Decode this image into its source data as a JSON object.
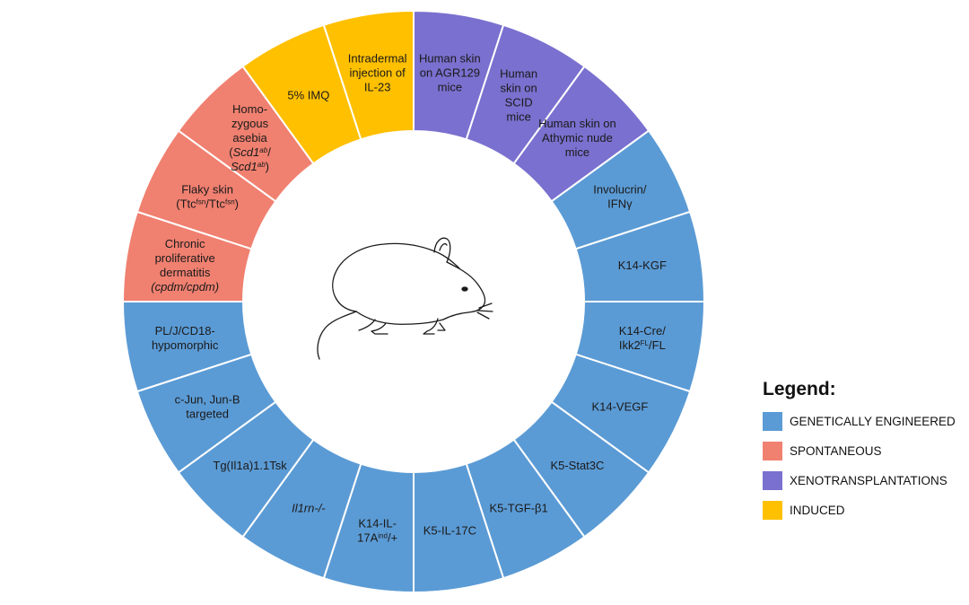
{
  "categories": {
    "genetic": {
      "label": "GENETICALLY ENGINEERED",
      "color": "#5b9bd5"
    },
    "spontaneous": {
      "label": "SPONTANEOUS",
      "color": "#f08070"
    },
    "xeno": {
      "label": "XENOTRANSPLANTATIONS",
      "color": "#7a70cf"
    },
    "induced": {
      "label": "INDUCED",
      "color": "#ffc000"
    }
  },
  "legend": {
    "title": "Legend:",
    "items": [
      {
        "key": "genetic",
        "label": "GENETICALLY ENGINEERED",
        "color": "#5b9bd5"
      },
      {
        "key": "spontaneous",
        "label": "SPONTANEOUS",
        "color": "#f08070"
      },
      {
        "key": "xeno",
        "label": "XENOTRANSPLANTATIONS",
        "color": "#7a70cf"
      },
      {
        "key": "induced",
        "label": "INDUCED",
        "color": "#ffc000"
      }
    ]
  },
  "center_icon": "mouse-icon",
  "segments": [
    {
      "name": "human-skin-agr129",
      "category": "xeno",
      "lines": [
        "Human skin",
        "on AGR129",
        "mice"
      ]
    },
    {
      "name": "human-skin-scid",
      "category": "xeno",
      "lines": [
        "Human",
        "skin on",
        "SCID",
        "mice"
      ]
    },
    {
      "name": "human-skin-athymic",
      "category": "xeno",
      "lines": [
        "Human skin on",
        "Athymic nude",
        "mice"
      ]
    },
    {
      "name": "involucrin-ifng",
      "category": "genetic",
      "lines": [
        "Involucrin/",
        "IFNγ"
      ]
    },
    {
      "name": "k14-kgf",
      "category": "genetic",
      "lines": [
        "K14-KGF"
      ]
    },
    {
      "name": "k14-cre-ikk2",
      "category": "genetic",
      "lines": [
        "K14-Cre/",
        "Ikk2^FL/FL"
      ]
    },
    {
      "name": "k14-vegf",
      "category": "genetic",
      "lines": [
        "K14-VEGF"
      ]
    },
    {
      "name": "k5-stat3c",
      "category": "genetic",
      "lines": [
        "K5-Stat3C"
      ]
    },
    {
      "name": "k5-tgf-b1",
      "category": "genetic",
      "lines": [
        "K5-TGF-β1"
      ]
    },
    {
      "name": "k5-il-17c",
      "category": "genetic",
      "lines": [
        "K5-IL-17C"
      ]
    },
    {
      "name": "k14-il-17a",
      "category": "genetic",
      "lines": [
        "K14-IL-",
        "17A^ind/+"
      ]
    },
    {
      "name": "il1rn",
      "category": "genetic",
      "lines": [
        "_Il1rn-/-_"
      ]
    },
    {
      "name": "tg-il1a",
      "category": "genetic",
      "lines": [
        "Tg(Il1a)1.1Tsk"
      ]
    },
    {
      "name": "c-jun-jun-b",
      "category": "genetic",
      "lines": [
        "c-Jun, Jun-B",
        "targeted"
      ]
    },
    {
      "name": "pl-j-cd18",
      "category": "genetic",
      "lines": [
        "PL/J/CD18-",
        "hypomorphic"
      ]
    },
    {
      "name": "cpdm",
      "category": "spontaneous",
      "lines": [
        "Chronic",
        "proliferative",
        "dermatitis",
        "_(cpdm/cpdm)_"
      ]
    },
    {
      "name": "flaky-skin",
      "category": "spontaneous",
      "lines": [
        "Flaky skin",
        "(Ttc^fsn/Ttc^fsn)"
      ]
    },
    {
      "name": "homozygous-asebia",
      "category": "spontaneous",
      "lines": [
        "Homo-",
        "zygous",
        "asebia",
        "(_Scd1^ab_/",
        "_Scd1^ab_)"
      ]
    },
    {
      "name": "imq",
      "category": "induced",
      "lines": [
        "5% IMQ"
      ]
    },
    {
      "name": "il-23",
      "category": "induced",
      "lines": [
        "Intradermal",
        "injection of",
        "IL-23"
      ]
    }
  ]
}
